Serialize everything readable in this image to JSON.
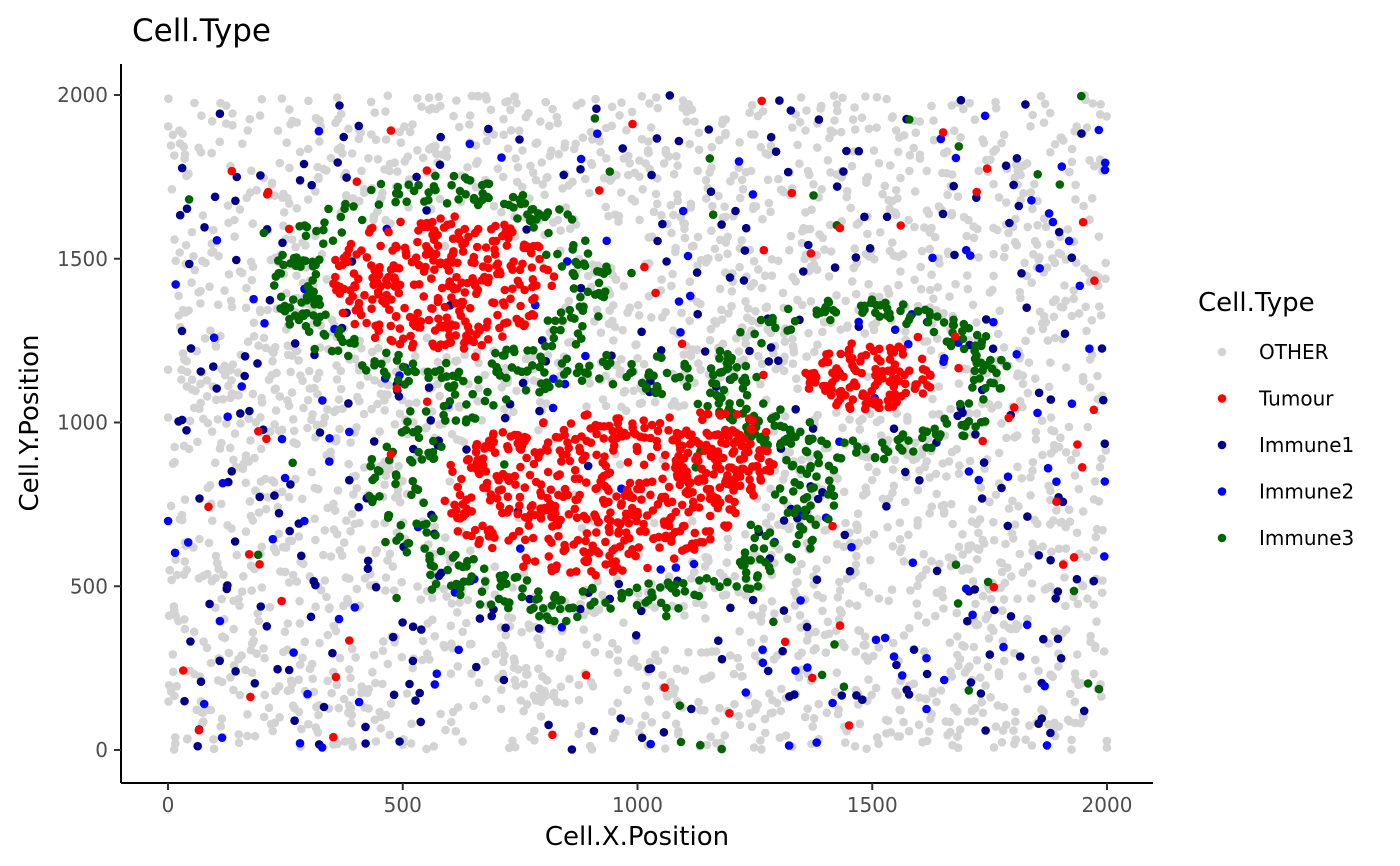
{
  "chart_data": {
    "type": "scatter",
    "title": "Cell.Type",
    "xlabel": "Cell.X.Position",
    "ylabel": "Cell.Y.Position",
    "xlim": [
      -100,
      2100
    ],
    "ylim": [
      -100,
      2100
    ],
    "xticks": [
      0,
      500,
      1000,
      1500,
      2000
    ],
    "yticks": [
      0,
      500,
      1000,
      1500,
      2000
    ],
    "grid": false,
    "legend": {
      "title": "Cell.Type",
      "placement": "right",
      "entries": [
        "OTHER",
        "Tumour",
        "Immune1",
        "Immune2",
        "Immune3"
      ]
    },
    "series": [
      {
        "name": "OTHER",
        "color": "#d3d3d3",
        "approx_count": 3000,
        "distribution": "uniform background across the whole 0-2000 square"
      },
      {
        "name": "Tumour",
        "color": "#ff0000",
        "clusters": [
          {
            "center": [
              580,
              1430
            ],
            "radius": [
              260,
              220
            ],
            "count": 300
          },
          {
            "center": [
              900,
              780
            ],
            "radius": [
              340,
              260
            ],
            "count": 420
          },
          {
            "center": [
              1180,
              900
            ],
            "radius": [
              120,
              160
            ],
            "count": 120
          },
          {
            "center": [
              1490,
              1140
            ],
            "radius": [
              150,
              110
            ],
            "count": 120
          }
        ],
        "background_count": 80
      },
      {
        "name": "Immune1",
        "color": "#00008b",
        "approx_count": 340,
        "distribution": "scattered, concentrated outside tumour regions"
      },
      {
        "name": "Immune2",
        "color": "#0000ff",
        "approx_count": 150,
        "distribution": "scattered, concentrated outside tumour regions"
      },
      {
        "name": "Immune3",
        "color": "#006400",
        "rings": [
          {
            "center": [
              580,
              1430
            ],
            "radius": [
              320,
              290
            ],
            "count": 240
          },
          {
            "center": [
              920,
              800
            ],
            "radius": [
              450,
              370
            ],
            "count": 330
          },
          {
            "center": [
              1470,
              1130
            ],
            "radius": [
              290,
              220
            ],
            "count": 190
          }
        ],
        "background_count": 45
      }
    ]
  }
}
